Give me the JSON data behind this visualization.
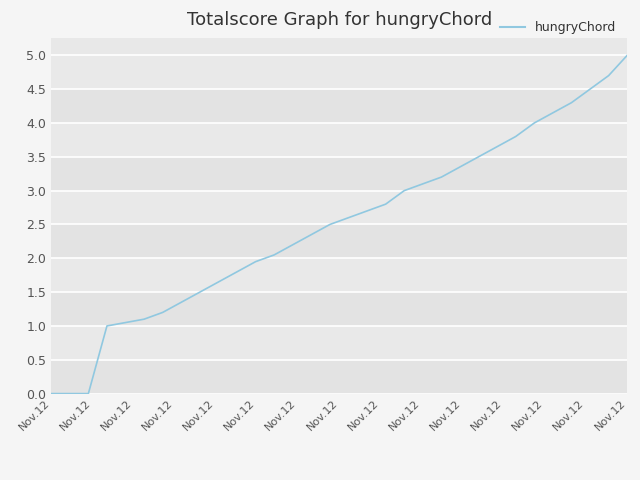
{
  "title": "Totalscore Graph for hungryChord",
  "legend_label": "hungryChord",
  "y_values": [
    0.0,
    0.0,
    0.0,
    1.0,
    1.05,
    1.1,
    1.2,
    1.35,
    1.5,
    1.65,
    1.8,
    1.95,
    2.05,
    2.2,
    2.35,
    2.5,
    2.6,
    2.7,
    2.8,
    3.0,
    3.1,
    3.2,
    3.35,
    3.5,
    3.65,
    3.8,
    4.0,
    4.15,
    4.3,
    4.5,
    4.7,
    5.0
  ],
  "x_tick_labels": [
    "Nov.12",
    "Nov.12",
    "Nov.12",
    "Nov.12",
    "Nov.12",
    "Nov.12",
    "Nov.12",
    "Nov.12",
    "Nov.12",
    "Nov.12",
    "Nov.12",
    "Nov.12",
    "Nov.12",
    "Nov.12",
    "Nov.12"
  ],
  "ylim": [
    0.0,
    5.25
  ],
  "yticks": [
    0.0,
    0.5,
    1.0,
    1.5,
    2.0,
    2.5,
    3.0,
    3.5,
    4.0,
    4.5,
    5.0
  ],
  "line_color": "#90c8e0",
  "plot_bg_color": "#e8e8e8",
  "fig_bg_color": "#f5f5f5",
  "title_fontsize": 13,
  "legend_line_color": "#90c8e0",
  "grid_color": "#ffffff",
  "tick_label_color": "#555555",
  "title_color": "#333333"
}
